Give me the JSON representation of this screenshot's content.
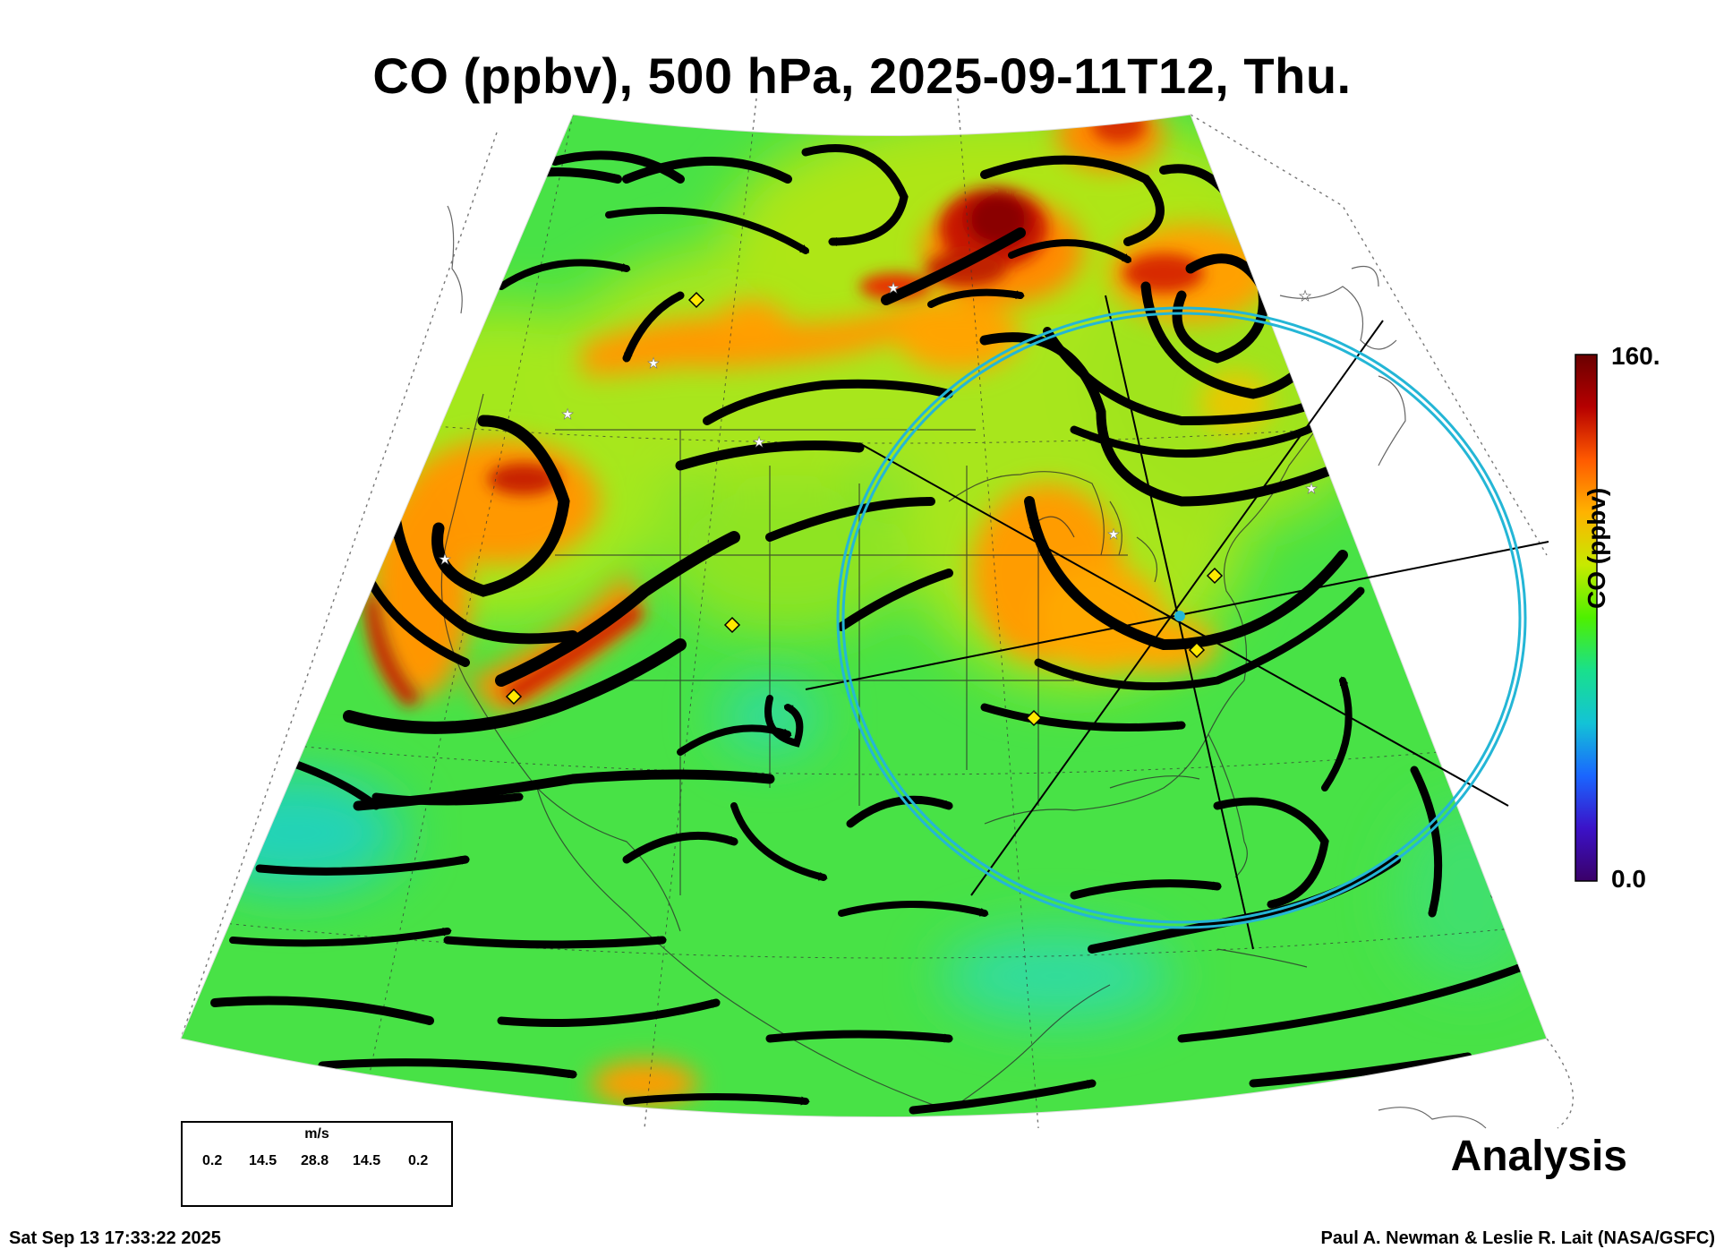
{
  "title": "CO (ppbv), 500 hPa, 2025-09-11T12, Thu.",
  "analysis_label": "Analysis",
  "footer": {
    "timestamp": "Sat Sep 13 17:33:22 2025",
    "credit": "Paul A. Newman & Leslie R. Lait (NASA/GSFC)"
  },
  "colorbar": {
    "label": "CO (ppbv)",
    "max_label": "160.",
    "min_label": "0.0",
    "min": 0,
    "max": 160,
    "colors": [
      "#3a0068",
      "#3b12c8",
      "#1a66ff",
      "#13c3d6",
      "#19e08c",
      "#4ef000",
      "#c6ea00",
      "#ffb300",
      "#ff5a00",
      "#b60000",
      "#6a0000"
    ]
  },
  "wind_legend": {
    "unit": "m/s",
    "ticks": [
      "0.2",
      "14.5",
      "28.8",
      "14.5",
      "0.2"
    ]
  },
  "colors": {
    "field_background": "#48e246",
    "ring": "#24b6d6",
    "marker_yellow": "#ffe800"
  }
}
